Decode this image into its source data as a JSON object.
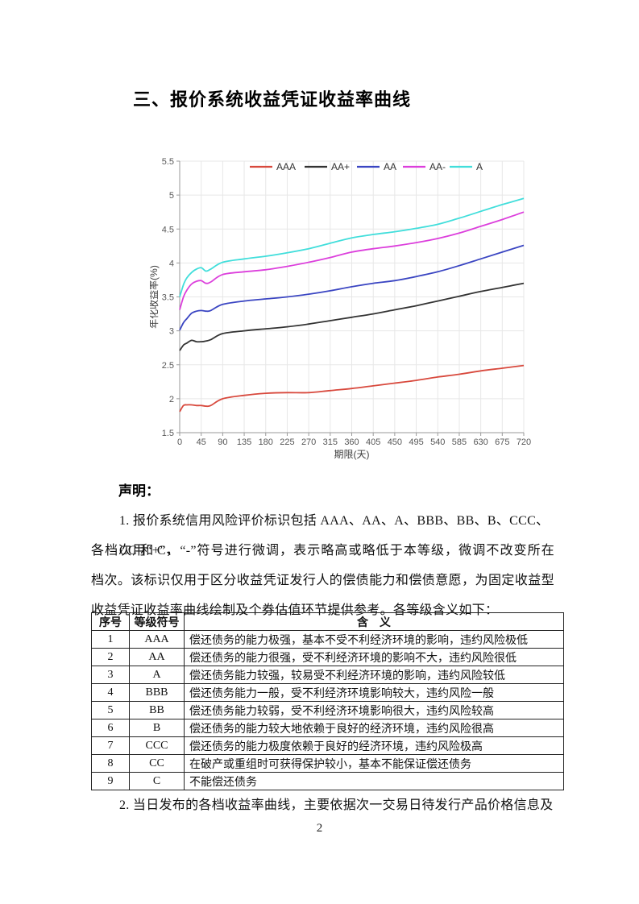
{
  "page": {
    "title": "三、报价系统收益凭证收益率曲线",
    "page_number": "2"
  },
  "chart_data": {
    "type": "line",
    "title": "",
    "xlabel": "期限(天)",
    "ylabel": "年化收益率(%)",
    "xlim": [
      0,
      720
    ],
    "ylim": [
      1.5,
      5.5
    ],
    "x_ticks": [
      0,
      45,
      90,
      135,
      180,
      225,
      270,
      315,
      360,
      405,
      450,
      495,
      540,
      585,
      630,
      675,
      720
    ],
    "y_ticks": [
      1.5,
      2,
      2.5,
      3,
      3.5,
      4,
      4.5,
      5,
      5.5
    ],
    "grid": true,
    "legend_position": "top-center",
    "x": [
      0,
      8,
      15,
      25,
      35,
      45,
      55,
      65,
      90,
      135,
      180,
      225,
      270,
      315,
      360,
      405,
      450,
      495,
      540,
      585,
      630,
      675,
      720
    ],
    "series": [
      {
        "name": "AAA",
        "color": "#d8493d",
        "values": [
          1.81,
          1.9,
          1.91,
          1.91,
          1.9,
          1.9,
          1.89,
          1.9,
          2.0,
          2.05,
          2.08,
          2.09,
          2.09,
          2.12,
          2.15,
          2.19,
          2.23,
          2.27,
          2.32,
          2.36,
          2.41,
          2.45,
          2.49
        ]
      },
      {
        "name": "AA+",
        "color": "#333333",
        "values": [
          2.71,
          2.79,
          2.82,
          2.86,
          2.84,
          2.84,
          2.85,
          2.87,
          2.96,
          3.0,
          3.03,
          3.06,
          3.1,
          3.15,
          3.2,
          3.25,
          3.31,
          3.37,
          3.44,
          3.51,
          3.58,
          3.64,
          3.7
        ]
      },
      {
        "name": "AA",
        "color": "#3a45c2",
        "values": [
          3.01,
          3.12,
          3.18,
          3.26,
          3.29,
          3.3,
          3.29,
          3.3,
          3.39,
          3.44,
          3.47,
          3.5,
          3.54,
          3.59,
          3.65,
          3.7,
          3.74,
          3.8,
          3.87,
          3.96,
          4.06,
          4.16,
          4.26
        ]
      },
      {
        "name": "AA-",
        "color": "#dc3fdc",
        "values": [
          3.31,
          3.5,
          3.6,
          3.69,
          3.73,
          3.74,
          3.7,
          3.72,
          3.83,
          3.87,
          3.9,
          3.95,
          4.01,
          4.08,
          4.16,
          4.21,
          4.25,
          4.3,
          4.36,
          4.44,
          4.54,
          4.64,
          4.75
        ]
      },
      {
        "name": "A",
        "color": "#41dedb",
        "values": [
          3.5,
          3.68,
          3.78,
          3.86,
          3.91,
          3.93,
          3.88,
          3.91,
          4.01,
          4.06,
          4.1,
          4.15,
          4.21,
          4.29,
          4.37,
          4.42,
          4.46,
          4.51,
          4.57,
          4.66,
          4.76,
          4.86,
          4.95
        ]
      }
    ]
  },
  "declaration": {
    "heading": "声明：",
    "item1_lines": [
      "1. 报价系统信用风险评价标识包括 AAA、AA、A、BBB、BB、B、CCC、CC 和 C，",
      "各档次用“+”、“-”符号进行微调，表示略高或略低于本等级，微调不改变所在",
      "档次。该标识仅用于区分收益凭证发行人的偿债能力和偿债意愿，为固定收益型",
      "收益凭证收益率曲线绘制及个券估值环节提供参考。各等级含义如下："
    ],
    "item2": "2. 当日发布的各档收益率曲线，主要依据次一交易日待发行产品价格信息及"
  },
  "table": {
    "headers": [
      "序号",
      "等级符号",
      "含　义"
    ],
    "rows": [
      [
        "1",
        "AAA",
        "偿还债务的能力极强，基本不受不利经济环境的影响，违约风险极低"
      ],
      [
        "2",
        "AA",
        "偿还债务的能力很强，受不利经济环境的影响不大，违约风险很低"
      ],
      [
        "3",
        "A",
        "偿还债务能力较强，较易受不利经济环境的影响，违约风险较低"
      ],
      [
        "4",
        "BBB",
        "偿还债务能力一般，受不利经济环境影响较大，违约风险一般"
      ],
      [
        "5",
        "BB",
        "偿还债务能力较弱，受不利经济环境影响很大，违约风险较高"
      ],
      [
        "6",
        "B",
        "偿还债务的能力较大地依赖于良好的经济环境，违约风险很高"
      ],
      [
        "7",
        "CCC",
        "偿还债务的能力极度依赖于良好的经济环境，违约风险极高"
      ],
      [
        "8",
        "CC",
        "在破产或重组时可获得保护较小，基本不能保证偿还债务"
      ],
      [
        "9",
        "C",
        "不能偿还债务"
      ]
    ]
  }
}
